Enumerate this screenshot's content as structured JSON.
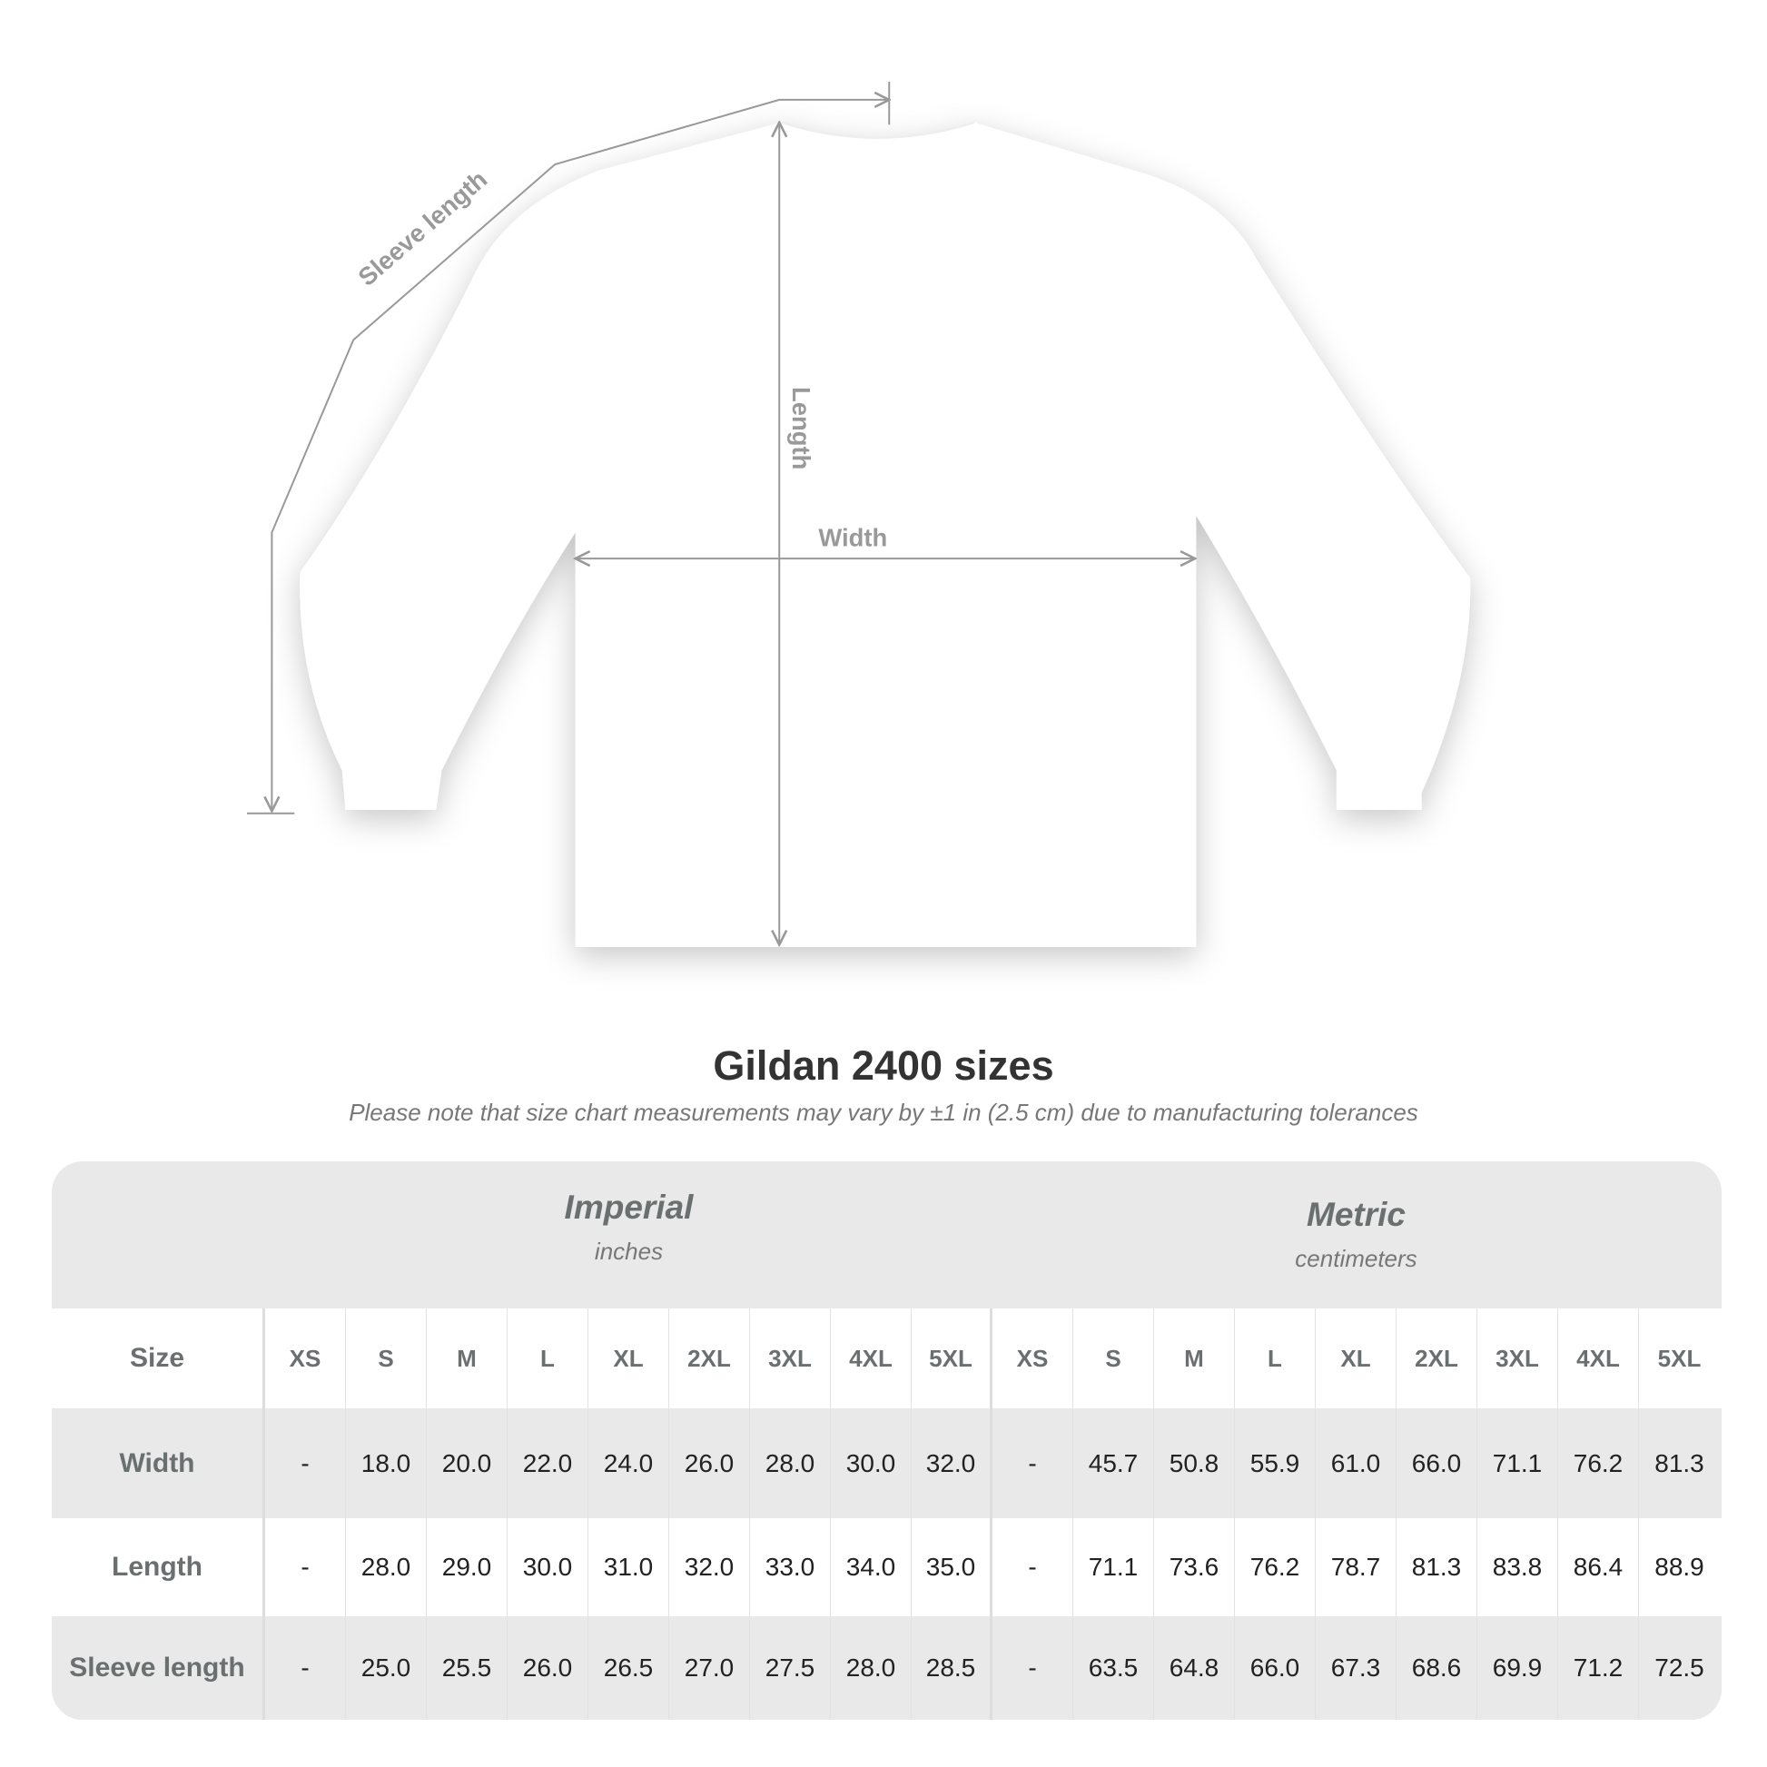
{
  "diagram": {
    "labels": {
      "sleeve": "Sleeve length",
      "length": "Length",
      "width": "Width"
    },
    "line_color": "#999999",
    "shirt_color": "#ffffff"
  },
  "title": "Gildan 2400 sizes",
  "subtitle": "Please note that size chart measurements may vary by ±1 in (2.5 cm) due to manufacturing tolerances",
  "table": {
    "imperial": {
      "name": "Imperial",
      "unit": "inches"
    },
    "metric": {
      "name": "Metric",
      "unit": "centimeters"
    },
    "size_label": "Size",
    "sizes": [
      "XS",
      "S",
      "M",
      "L",
      "XL",
      "2XL",
      "3XL",
      "4XL",
      "5XL",
      "XS",
      "S",
      "M",
      "L",
      "XL",
      "2XL",
      "3XL",
      "4XL",
      "5XL"
    ],
    "rows": [
      {
        "label": "Width",
        "values": [
          "-",
          "18.0",
          "20.0",
          "22.0",
          "24.0",
          "26.0",
          "28.0",
          "30.0",
          "32.0",
          "-",
          "45.7",
          "50.8",
          "55.9",
          "61.0",
          "66.0",
          "71.1",
          "76.2",
          "81.3"
        ]
      },
      {
        "label": "Length",
        "values": [
          "-",
          "28.0",
          "29.0",
          "30.0",
          "31.0",
          "32.0",
          "33.0",
          "34.0",
          "35.0",
          "-",
          "71.1",
          "73.6",
          "76.2",
          "78.7",
          "81.3",
          "83.8",
          "86.4",
          "88.9"
        ]
      },
      {
        "label": "Sleeve length",
        "values": [
          "-",
          "25.0",
          "25.5",
          "26.0",
          "26.5",
          "27.0",
          "27.5",
          "28.0",
          "28.5",
          "-",
          "63.5",
          "64.8",
          "66.0",
          "67.3",
          "68.6",
          "69.9",
          "71.2",
          "72.5"
        ]
      }
    ]
  }
}
